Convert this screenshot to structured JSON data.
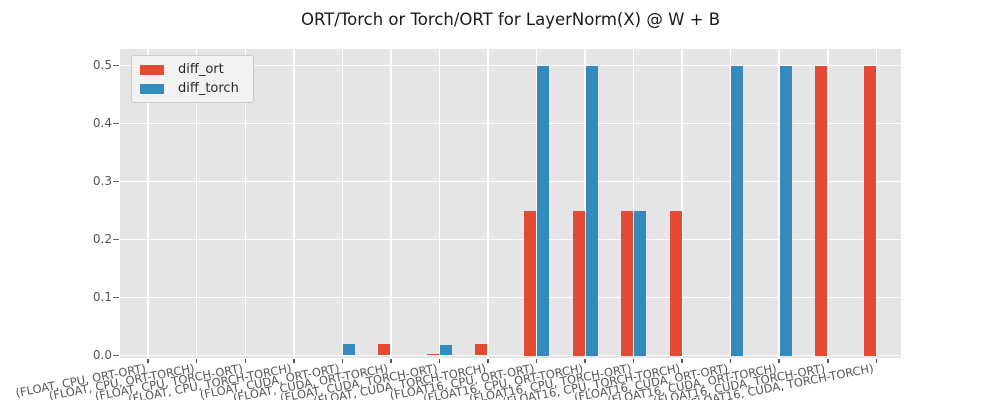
{
  "title": "ORT/Torch or Torch/ORT for LayerNorm(X) @ W + B",
  "legend": {
    "items": [
      {
        "label": "diff_ort",
        "color": "#E24A33"
      },
      {
        "label": "diff_torch",
        "color": "#348ABD"
      }
    ]
  },
  "colors": {
    "figure_bg": "#FFFFFF",
    "plot_bg": "#E5E5E5",
    "grid": "#FFFFFF",
    "tick_label": "#555555",
    "diff_ort": "#E24A33",
    "diff_torch": "#348ABD"
  },
  "y_axis": {
    "tick_labels": [
      "0.0",
      "0.1",
      "0.2",
      "0.3",
      "0.4",
      "0.5"
    ]
  },
  "chart_data": {
    "type": "bar",
    "title": "ORT/Torch or Torch/ORT for LayerNorm(X) @ W + B",
    "xlabel": "",
    "ylabel": "",
    "grid": true,
    "legend_position": "upper left",
    "ylim": [
      0,
      0.528
    ],
    "yticks": [
      0.0,
      0.1,
      0.2,
      0.3,
      0.4,
      0.5
    ],
    "categories": [
      "(FLOAT, CPU, ORT-ORT)",
      "(FLOAT, CPU, ORT-TORCH)",
      "(FLOAT, CPU, TORCH-ORT)",
      "(FLOAT, CPU, TORCH-TORCH)",
      "(FLOAT, CUDA, ORT-ORT)",
      "(FLOAT, CUDA, ORT-TORCH)",
      "(FLOAT, CUDA, TORCH-ORT)",
      "(FLOAT, CUDA, TORCH-TORCH)",
      "(FLOAT16, CPU, ORT-ORT)",
      "(FLOAT16, CPU, ORT-TORCH)",
      "(FLOAT16, CPU, TORCH-ORT)",
      "(FLOAT16, CPU, TORCH-TORCH)",
      "(FLOAT16, CUDA, ORT-ORT)",
      "(FLOAT16, CUDA, ORT-TORCH)",
      "(FLOAT16, CUDA, TORCH-ORT)",
      "(FLOAT16, CUDA, TORCH-TORCH)"
    ],
    "series": [
      {
        "name": "diff_ort",
        "color": "#E24A33",
        "values": [
          0,
          0,
          0,
          0,
          0,
          0.02,
          0.003,
          0.02,
          0.25,
          0.25,
          0.25,
          0.25,
          0,
          0,
          0.5,
          0.5
        ]
      },
      {
        "name": "diff_torch",
        "color": "#348ABD",
        "values": [
          0,
          0,
          0,
          0,
          0.02,
          0,
          0.018,
          0,
          0.5,
          0.5,
          0.25,
          0,
          0.5,
          0.5,
          0,
          0
        ]
      }
    ]
  }
}
